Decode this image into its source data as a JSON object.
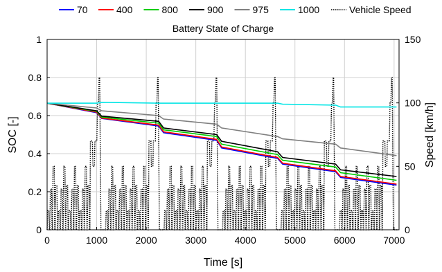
{
  "chart_data": {
    "type": "line",
    "title": "Battery State of Charge",
    "xlabel": "Time [s]",
    "ylabel": "SOC [-]",
    "y2label": "Speed [km/h]",
    "xlim": [
      0,
      7100
    ],
    "ylim": [
      0,
      1
    ],
    "y2lim": [
      0,
      150
    ],
    "xticks": [
      0,
      1000,
      2000,
      3000,
      4000,
      5000,
      6000,
      7000
    ],
    "yticks": [
      0,
      0.2,
      0.4,
      0.6,
      0.8,
      1
    ],
    "y2ticks": [
      0,
      50,
      100,
      150
    ],
    "grid": true,
    "legend_position": "top",
    "series": [
      {
        "name": "70",
        "color": "#0000ff",
        "x": [
          0,
          1000,
          1100,
          2250,
          2350,
          3420,
          3520,
          4650,
          4750,
          5820,
          5920,
          7050
        ],
        "values": [
          0.665,
          0.615,
          0.585,
          0.545,
          0.51,
          0.47,
          0.43,
          0.375,
          0.345,
          0.305,
          0.275,
          0.235
        ]
      },
      {
        "name": "400",
        "color": "#ff0000",
        "x": [
          0,
          1000,
          1100,
          2250,
          2350,
          3420,
          3520,
          4650,
          4750,
          5820,
          5920,
          7050
        ],
        "values": [
          0.665,
          0.618,
          0.587,
          0.55,
          0.515,
          0.475,
          0.435,
          0.38,
          0.35,
          0.31,
          0.28,
          0.24
        ]
      },
      {
        "name": "800",
        "color": "#00cc00",
        "x": [
          0,
          1000,
          1100,
          2250,
          2350,
          3420,
          3520,
          4650,
          4750,
          5820,
          5920,
          7050
        ],
        "values": [
          0.665,
          0.622,
          0.592,
          0.56,
          0.525,
          0.49,
          0.45,
          0.395,
          0.365,
          0.33,
          0.3,
          0.26
        ]
      },
      {
        "name": "900",
        "color": "#000000",
        "x": [
          0,
          1000,
          1100,
          2250,
          2350,
          3420,
          3520,
          4650,
          4750,
          5820,
          5920,
          7050
        ],
        "values": [
          0.665,
          0.625,
          0.597,
          0.57,
          0.535,
          0.5,
          0.465,
          0.41,
          0.38,
          0.345,
          0.315,
          0.28
        ]
      },
      {
        "name": "975",
        "color": "#808080",
        "x": [
          0,
          1000,
          1100,
          2250,
          2350,
          3420,
          3520,
          4650,
          4750,
          5820,
          5920,
          7050
        ],
        "values": [
          0.665,
          0.64,
          0.625,
          0.6,
          0.582,
          0.555,
          0.535,
          0.49,
          0.478,
          0.45,
          0.43,
          0.39
        ]
      },
      {
        "name": "1000",
        "color": "#00e5e5",
        "x": [
          0,
          1000,
          1100,
          2250,
          2350,
          3420,
          3520,
          4650,
          4750,
          5820,
          5920,
          7050
        ],
        "values": [
          0.665,
          0.665,
          0.67,
          0.665,
          0.665,
          0.665,
          0.665,
          0.665,
          0.66,
          0.655,
          0.645,
          0.645
        ]
      }
    ],
    "speed_series": {
      "name": "Vehicle Speed",
      "color": "#000000",
      "axis": "right",
      "cycle_period_s": 1180,
      "cycles": 6,
      "urban_peaks_kmh": [
        15,
        32,
        50,
        35,
        15,
        32,
        50,
        35,
        15,
        32,
        50,
        35,
        15,
        32,
        50,
        35
      ],
      "extra_urban_peaks_kmh": [
        70,
        50,
        70,
        100,
        120
      ]
    }
  }
}
